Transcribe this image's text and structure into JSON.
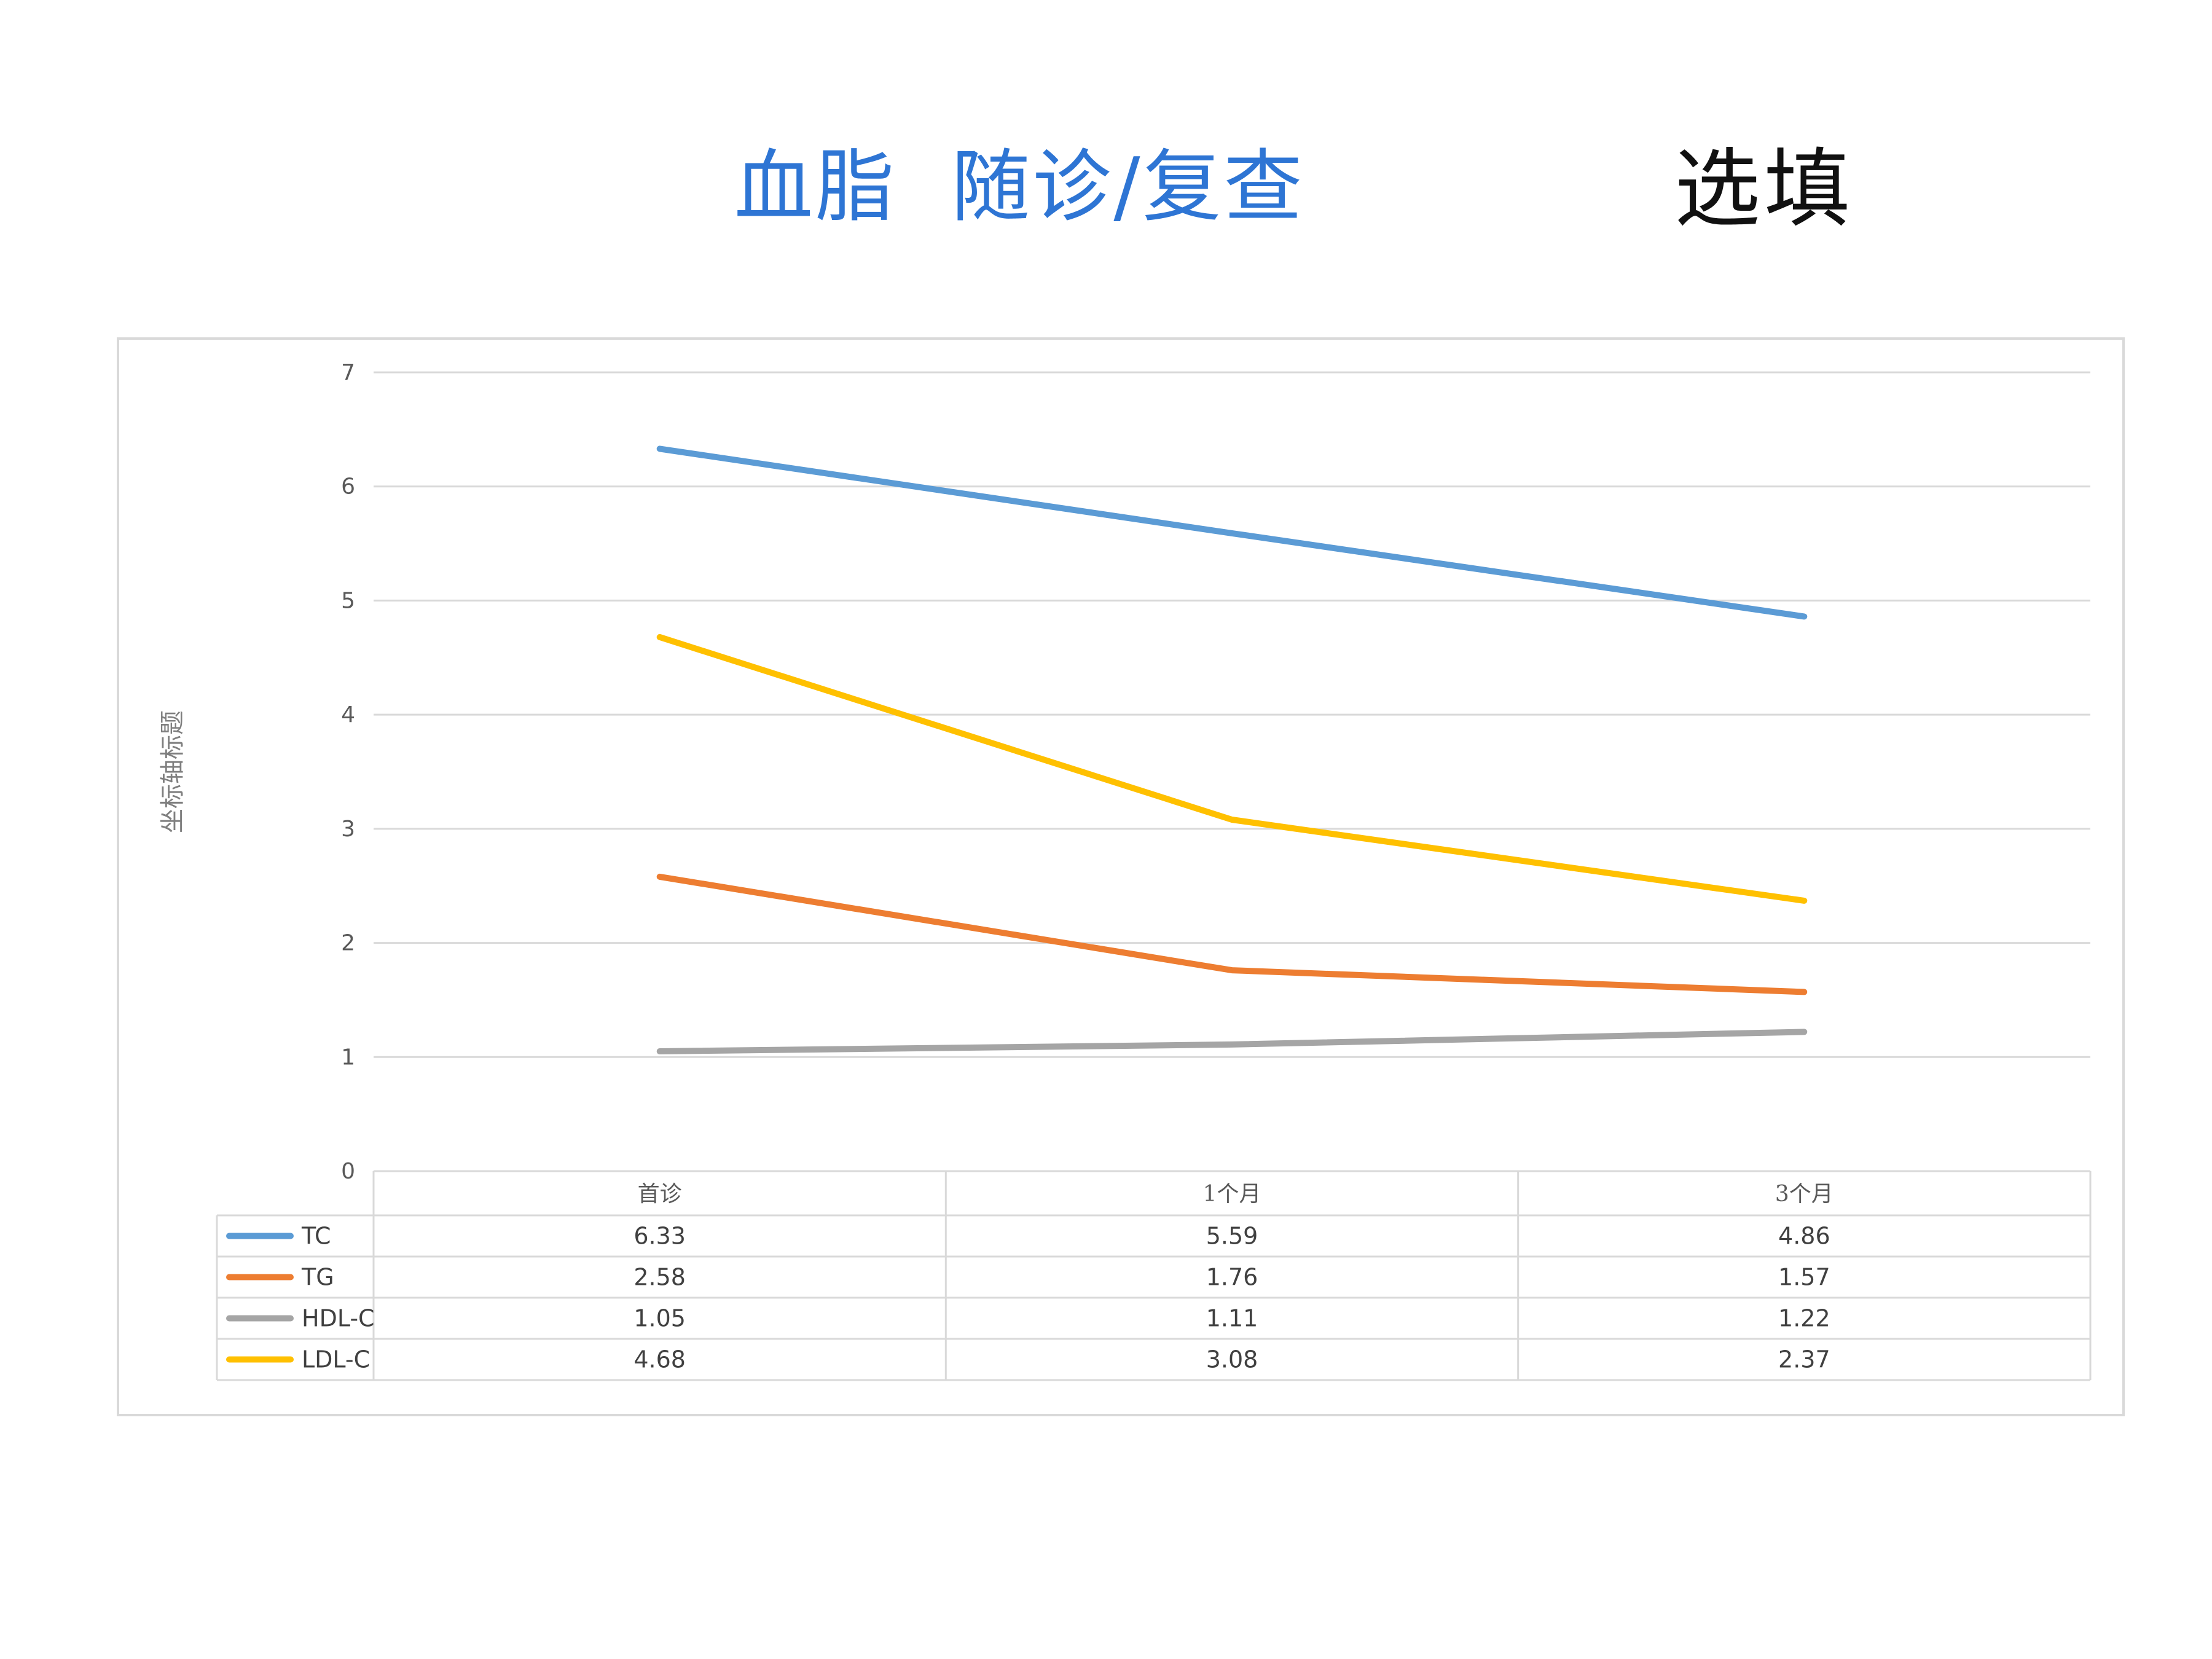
{
  "header": {
    "title": "血脂  随诊/复查",
    "note": "选填"
  },
  "colors": {
    "title": "#2E75D4",
    "grid": "#D9D9D9"
  },
  "chart_data": {
    "type": "line",
    "title": "",
    "xlabel": "",
    "ylabel": "坐标轴标题",
    "ylim": [
      0,
      7
    ],
    "yticks": [
      "0",
      "1",
      "2",
      "3",
      "4",
      "5",
      "6",
      "7"
    ],
    "grid": true,
    "legend": "data-table",
    "categories": [
      "首诊",
      "1个月",
      "3个月"
    ],
    "series": [
      {
        "name": "TC",
        "color": "#5B9BD5",
        "values": [
          6.33,
          5.59,
          4.86
        ],
        "labels": [
          "6.33",
          "5.59",
          "4.86"
        ]
      },
      {
        "name": "TG",
        "color": "#ED7D31",
        "values": [
          2.58,
          1.76,
          1.57
        ],
        "labels": [
          "2.58",
          "1.76",
          "1.57"
        ]
      },
      {
        "name": "HDL-C",
        "color": "#A5A5A5",
        "values": [
          1.05,
          1.11,
          1.22
        ],
        "labels": [
          "1.05",
          "1.11",
          "1.22"
        ]
      },
      {
        "name": "LDL-C",
        "color": "#FFC000",
        "values": [
          4.68,
          3.08,
          2.37
        ],
        "labels": [
          "4.68",
          "3.08",
          "2.37"
        ]
      }
    ]
  }
}
